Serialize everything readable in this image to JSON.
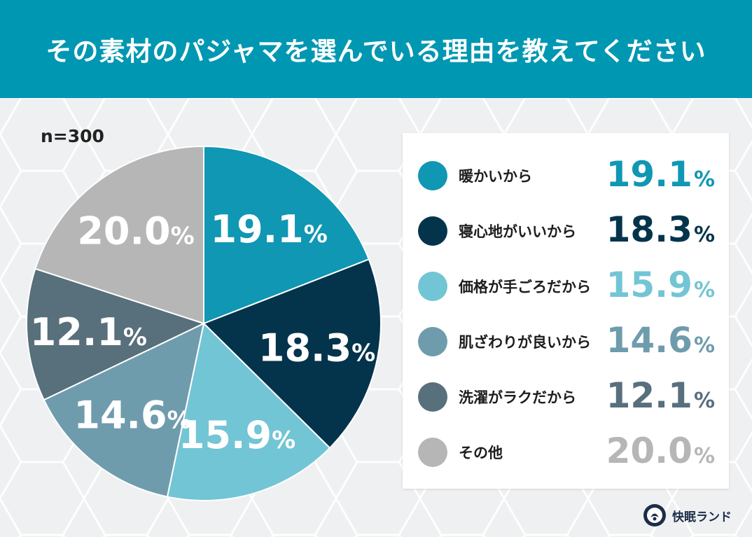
{
  "header": {
    "title": "その素材のパジャマを選んでいる理由を教えてください"
  },
  "chart_data": {
    "type": "pie",
    "title": "その素材のパジャマを選んでいる理由を教えてください",
    "sample_size": "n=300",
    "unit": "%",
    "slices": [
      {
        "label": "暖かいから",
        "value": 19.1,
        "display": "19.1",
        "color": "#0f97b3",
        "label_color": "#ffffff"
      },
      {
        "label": "寝心地がいいから",
        "value": 18.3,
        "display": "18.3",
        "color": "#04344c",
        "label_color": "#ffffff"
      },
      {
        "label": "価格が手ごろだから",
        "value": 15.9,
        "display": "15.9",
        "color": "#72c5d4",
        "label_color": "#ffffff"
      },
      {
        "label": "肌ざわりが良いから",
        "value": 14.6,
        "display": "14.6",
        "color": "#6f9cad",
        "label_color": "#ffffff"
      },
      {
        "label": "洗濯がラクだから",
        "value": 12.1,
        "display": "12.1",
        "color": "#586f7c",
        "label_color": "#ffffff"
      },
      {
        "label": "その他",
        "value": 20.0,
        "display": "20.0",
        "color": "#b6b6b6",
        "label_color": "#ffffff"
      }
    ],
    "legend_value_colors": [
      "#0f97b3",
      "#04344c",
      "#72c5d4",
      "#6f9cad",
      "#586f7c",
      "#b6b6b6"
    ]
  },
  "brand": {
    "name": "快眠ランド",
    "logo_icon": "kaimin-land-logo"
  }
}
